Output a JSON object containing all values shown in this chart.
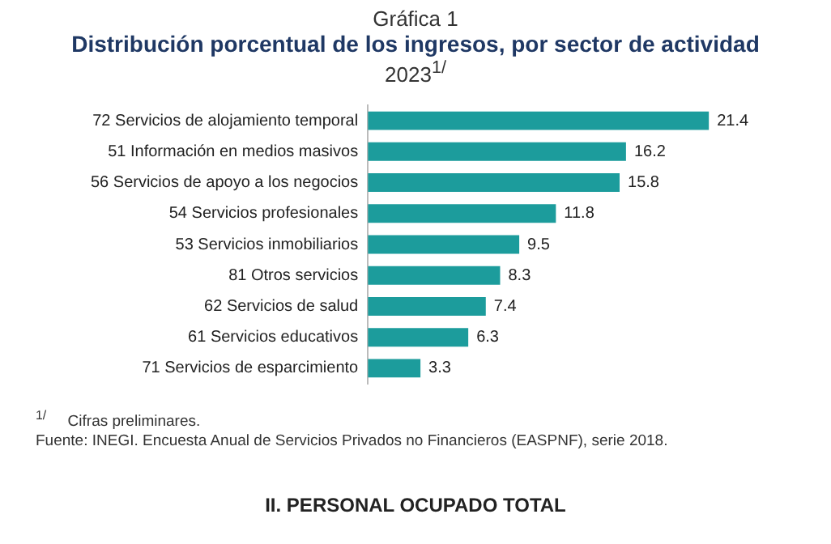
{
  "chart_data": {
    "type": "bar",
    "title": "Gráfica 1",
    "subtitle": "Distribución porcentual de los ingresos, por sector de actividad",
    "orientation": "horizontal",
    "categories": [
      "72 Servicios de alojamiento temporal",
      "51 Información en medios masivos",
      "56 Servicios de apoyo a los negocios",
      "54 Servicios profesionales",
      "53 Servicios inmobiliarios",
      "81 Otros servicios",
      "62 Servicios de salud",
      "61 Servicios educativos",
      "71 Servicios de esparcimiento"
    ],
    "values": [
      21.4,
      16.2,
      15.8,
      11.8,
      9.5,
      8.3,
      7.4,
      6.3,
      3.3
    ],
    "color": "#1c9c9c",
    "data_labels": true,
    "grid": false,
    "legend": false,
    "tick_labels": "y",
    "annotations": [
      "2023$^{1/}$",
      "$^{1/}$     Cifras preliminares.",
      "Fuente: INEGI. Encuesta Anual de Servicios Privados no Financieros (EASPNF), serie 2018.",
      "II. PERSONAL OCUPADO TOTAL"
    ]
  }
}
